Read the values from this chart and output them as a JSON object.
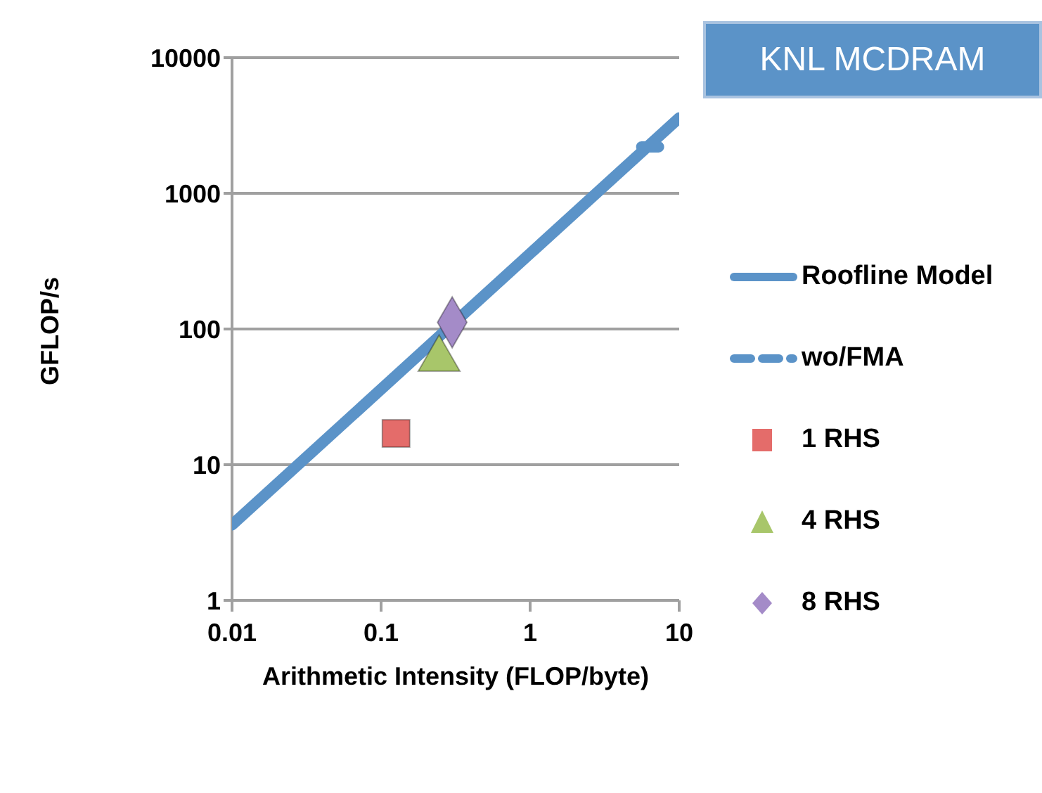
{
  "chart_data": {
    "type": "scatter",
    "title": "KNL MCDRAM",
    "xlabel": "Arithmetic Intensity (FLOP/byte)",
    "ylabel": "GFLOP/s",
    "log": "xy",
    "xlim": [
      0.01,
      10
    ],
    "ylim": [
      1,
      10000
    ],
    "xticks": [
      0.01,
      0.1,
      1,
      10
    ],
    "yticks": [
      1,
      10,
      100,
      1000,
      10000
    ],
    "grid": "y",
    "legend": "right",
    "series": [
      {
        "name": "Roofline Model",
        "type": "line",
        "line_style": "solid",
        "color": "#5b93c8",
        "x": [
          0.01,
          10
        ],
        "values": [
          3.6,
          3600
        ]
      },
      {
        "name": "wo/FMA",
        "type": "line",
        "line_style": "dashed",
        "color": "#5b93c8",
        "x": [
          5.6,
          8.3
        ],
        "values": [
          2200,
          2200
        ]
      },
      {
        "name": "1 RHS",
        "marker": "square",
        "color": "#e46c6a",
        "x": [
          0.126
        ],
        "values": [
          17
        ]
      },
      {
        "name": "4 RHS",
        "marker": "triangle",
        "color": "#a8c66a",
        "x": [
          0.245
        ],
        "values": [
          60
        ]
      },
      {
        "name": "8 RHS",
        "marker": "diamond",
        "color": "#a48bc8",
        "x": [
          0.3
        ],
        "values": [
          112
        ]
      }
    ]
  }
}
